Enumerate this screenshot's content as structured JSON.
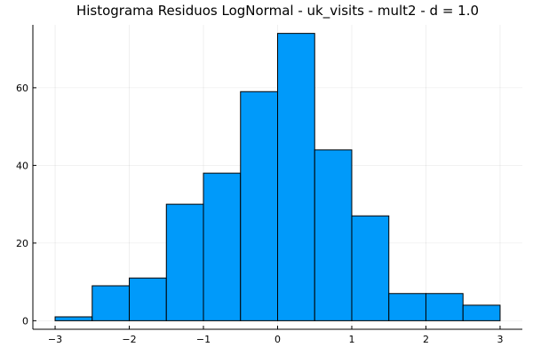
{
  "chart_data": {
    "type": "bar",
    "title": "Histograma Residuos LogNormal - uk_visits - mult2 - d = 1.0",
    "xlabel": "",
    "ylabel": "",
    "bins": [
      {
        "x0": -3.0,
        "x1": -2.5,
        "count": 1
      },
      {
        "x0": -2.5,
        "x1": -2.0,
        "count": 9
      },
      {
        "x0": -2.0,
        "x1": -1.5,
        "count": 11
      },
      {
        "x0": -1.5,
        "x1": -1.0,
        "count": 30
      },
      {
        "x0": -1.0,
        "x1": -0.5,
        "count": 38
      },
      {
        "x0": -0.5,
        "x1": 0.0,
        "count": 59
      },
      {
        "x0": 0.0,
        "x1": 0.5,
        "count": 74
      },
      {
        "x0": 0.5,
        "x1": 1.0,
        "count": 44
      },
      {
        "x0": 1.0,
        "x1": 1.5,
        "count": 27
      },
      {
        "x0": 1.5,
        "x1": 2.0,
        "count": 7
      },
      {
        "x0": 2.0,
        "x1": 2.5,
        "count": 7
      },
      {
        "x0": 2.5,
        "x1": 3.0,
        "count": 4
      }
    ],
    "xlim": [
      -3.3,
      3.3
    ],
    "ylim": [
      -2.2,
      76.2
    ],
    "xticks": [
      -3,
      -2,
      -1,
      0,
      1,
      2,
      3
    ],
    "xtick_labels": [
      "−3",
      "−2",
      "−1",
      "0",
      "1",
      "2",
      "3"
    ],
    "yticks": [
      0,
      20,
      40,
      60
    ],
    "ytick_labels": [
      "0",
      "20",
      "40",
      "60"
    ],
    "grid": true,
    "legend": "none",
    "bar_color": "#009AFA",
    "edge_color": "#000000"
  }
}
